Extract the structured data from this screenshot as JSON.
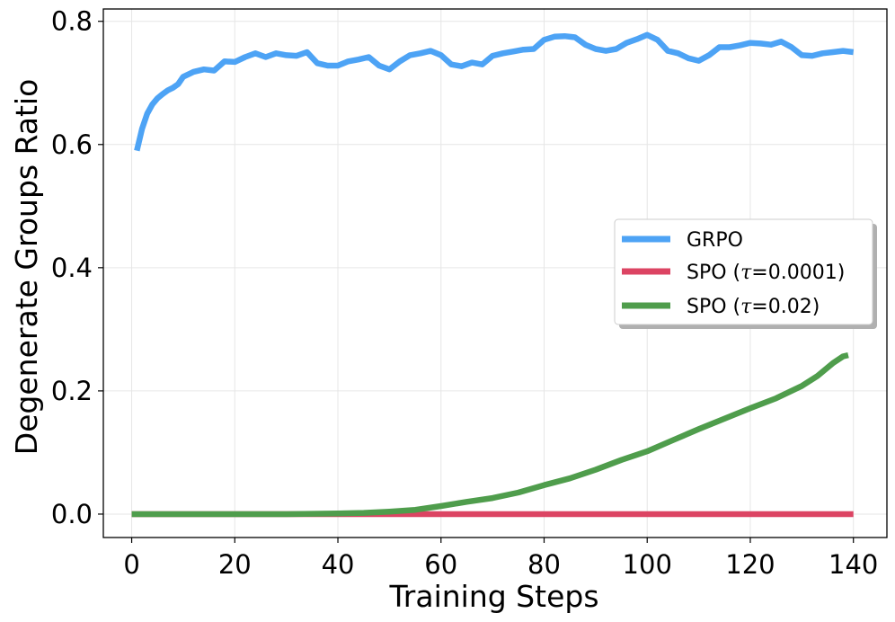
{
  "chart_data": {
    "type": "line",
    "xlabel": "Training Steps",
    "ylabel": "Degenerate Groups Ratio",
    "xlim": [
      -5.5,
      146.5
    ],
    "ylim": [
      -0.038,
      0.82
    ],
    "xticks": [
      0,
      20,
      40,
      60,
      80,
      100,
      120,
      140
    ],
    "yticks": [
      0.0,
      0.2,
      0.4,
      0.6,
      0.8
    ],
    "xtick_labels": [
      "0",
      "20",
      "40",
      "60",
      "80",
      "100",
      "120",
      "140"
    ],
    "ytick_labels": [
      "0.0",
      "0.2",
      "0.4",
      "0.6",
      "0.8"
    ],
    "grid": true,
    "legend_position": "center-right",
    "legend": [
      {
        "prefix": "GRPO",
        "symbol": "",
        "suffix": ""
      },
      {
        "prefix": "SPO (",
        "symbol": "τ",
        "suffix": "=0.0001)"
      },
      {
        "prefix": "SPO (",
        "symbol": "τ",
        "suffix": "=0.02)"
      }
    ],
    "series": [
      {
        "color": "#4da3f5",
        "x": [
          1,
          2,
          3,
          4,
          5,
          6,
          7,
          8,
          9,
          10,
          12,
          14,
          16,
          18,
          20,
          22,
          24,
          26,
          28,
          30,
          32,
          34,
          36,
          38,
          40,
          42,
          44,
          46,
          48,
          50,
          52,
          54,
          56,
          58,
          60,
          62,
          64,
          66,
          68,
          70,
          72,
          74,
          76,
          78,
          80,
          82,
          84,
          86,
          88,
          90,
          92,
          94,
          96,
          98,
          100,
          102,
          104,
          106,
          108,
          110,
          112,
          114,
          116,
          118,
          120,
          122,
          124,
          126,
          128,
          130,
          132,
          134,
          136,
          138,
          140
        ],
        "y": [
          0.59,
          0.625,
          0.65,
          0.665,
          0.675,
          0.682,
          0.688,
          0.692,
          0.698,
          0.71,
          0.718,
          0.722,
          0.72,
          0.735,
          0.734,
          0.742,
          0.748,
          0.742,
          0.748,
          0.745,
          0.744,
          0.75,
          0.732,
          0.728,
          0.728,
          0.735,
          0.738,
          0.742,
          0.728,
          0.722,
          0.735,
          0.745,
          0.748,
          0.752,
          0.745,
          0.73,
          0.727,
          0.733,
          0.73,
          0.744,
          0.748,
          0.751,
          0.754,
          0.755,
          0.77,
          0.775,
          0.776,
          0.774,
          0.762,
          0.755,
          0.752,
          0.755,
          0.765,
          0.771,
          0.778,
          0.77,
          0.752,
          0.748,
          0.74,
          0.736,
          0.745,
          0.758,
          0.758,
          0.761,
          0.765,
          0.764,
          0.762,
          0.767,
          0.758,
          0.745,
          0.744,
          0.748,
          0.75,
          0.752,
          0.75
        ]
      },
      {
        "color": "#dc4463",
        "x": [
          0,
          20,
          40,
          60,
          80,
          100,
          120,
          140
        ],
        "y": [
          0,
          0,
          0,
          0,
          0,
          0,
          0,
          0
        ]
      },
      {
        "color": "#4f9d4c",
        "x": [
          0,
          10,
          20,
          30,
          40,
          45,
          50,
          55,
          60,
          65,
          70,
          75,
          80,
          85,
          90,
          95,
          100,
          105,
          110,
          115,
          120,
          125,
          130,
          133,
          136,
          138,
          139
        ],
        "y": [
          0,
          0,
          0,
          0,
          0.001,
          0.002,
          0.004,
          0.007,
          0.013,
          0.02,
          0.026,
          0.035,
          0.047,
          0.058,
          0.072,
          0.088,
          0.102,
          0.12,
          0.138,
          0.155,
          0.172,
          0.188,
          0.208,
          0.224,
          0.245,
          0.256,
          0.258
        ]
      }
    ]
  }
}
